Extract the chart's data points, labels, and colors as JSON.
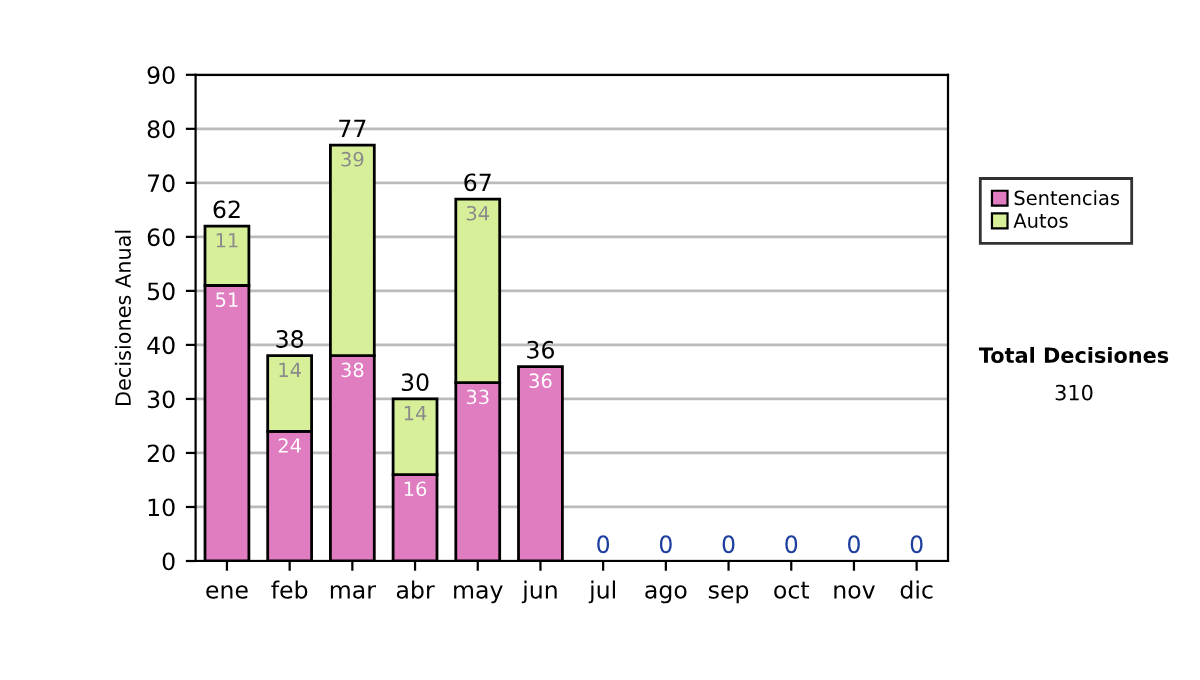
{
  "chart_data": {
    "type": "bar",
    "stacked": true,
    "ylabel": "Decisiones Anual",
    "categories": [
      "ene",
      "feb",
      "mar",
      "abr",
      "may",
      "jun",
      "jul",
      "ago",
      "sep",
      "oct",
      "nov",
      "dic"
    ],
    "series": [
      {
        "name": "Sentencias",
        "color": "#e07cc0",
        "values": [
          51,
          24,
          38,
          16,
          33,
          36,
          0,
          0,
          0,
          0,
          0,
          0
        ],
        "value_labels": [
          "51",
          "24",
          "38",
          "16",
          "33",
          "36",
          null,
          null,
          null,
          null,
          null,
          null
        ]
      },
      {
        "name": "Autos",
        "color": "#d8ef9a",
        "values": [
          11,
          14,
          39,
          14,
          34,
          0,
          0,
          0,
          0,
          0,
          0,
          0
        ],
        "value_labels": [
          "11",
          "14",
          "39",
          "14",
          "34",
          null,
          null,
          null,
          null,
          null,
          null,
          null
        ]
      }
    ],
    "totals": [
      "62",
      "38",
      "77",
      "30",
      "67",
      "36",
      "0",
      "0",
      "0",
      "0",
      "0",
      "0"
    ],
    "ylim": [
      0,
      90
    ],
    "yticks": [
      0,
      10,
      20,
      30,
      40,
      50,
      60,
      70,
      80,
      90
    ],
    "grid": "y",
    "legend": "right",
    "annotations": [
      "Total Decisiones",
      "310"
    ]
  }
}
